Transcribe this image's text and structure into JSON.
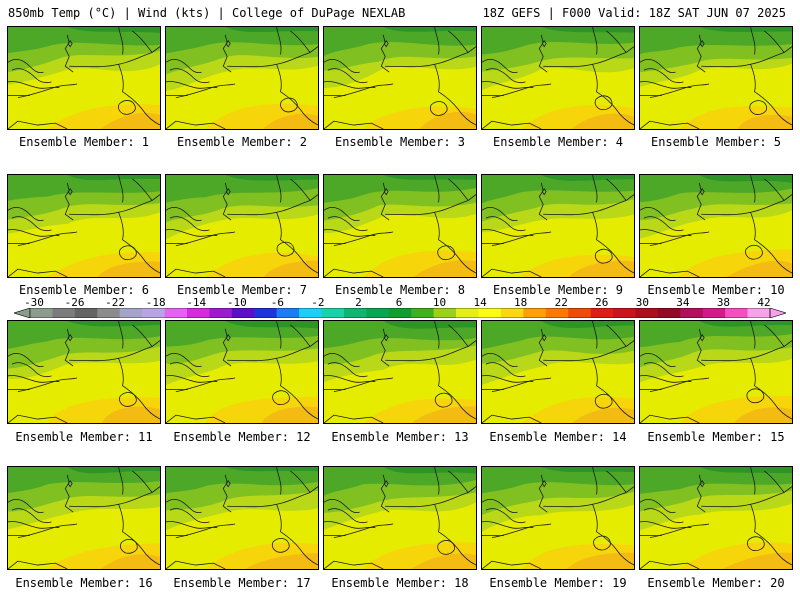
{
  "header": {
    "title": "850mb Temp (°C) | Wind (kts) | College of DuPage NEXLAB",
    "valid": "18Z GEFS | F000 Valid: 18Z SAT JUN 07 2025"
  },
  "members": [
    {
      "label": "Ensemble Member: 1"
    },
    {
      "label": "Ensemble Member: 2"
    },
    {
      "label": "Ensemble Member: 3"
    },
    {
      "label": "Ensemble Member: 4"
    },
    {
      "label": "Ensemble Member: 5"
    },
    {
      "label": "Ensemble Member: 6"
    },
    {
      "label": "Ensemble Member: 7"
    },
    {
      "label": "Ensemble Member: 8"
    },
    {
      "label": "Ensemble Member: 9"
    },
    {
      "label": "Ensemble Member: 10"
    },
    {
      "label": "Ensemble Member: 11"
    },
    {
      "label": "Ensemble Member: 12"
    },
    {
      "label": "Ensemble Member: 13"
    },
    {
      "label": "Ensemble Member: 14"
    },
    {
      "label": "Ensemble Member: 15"
    },
    {
      "label": "Ensemble Member: 16"
    },
    {
      "label": "Ensemble Member: 17"
    },
    {
      "label": "Ensemble Member: 18"
    },
    {
      "label": "Ensemble Member: 19"
    },
    {
      "label": "Ensemble Member: 20"
    }
  ],
  "colorbar": {
    "ticks": [
      "-30",
      "-26",
      "-22",
      "-18",
      "-14",
      "-10",
      "-6",
      "-2",
      "2",
      "6",
      "10",
      "14",
      "18",
      "22",
      "26",
      "30",
      "34",
      "38",
      "42"
    ],
    "colors": [
      "#8c9c8c",
      "#7c7c7c",
      "#646464",
      "#8c8c8c",
      "#a4a4c8",
      "#b8a4e4",
      "#e464f0",
      "#d42cd8",
      "#9c1ccc",
      "#5c10c4",
      "#1c34d8",
      "#1c7cf0",
      "#1cd0f4",
      "#1cd0a8",
      "#14b470",
      "#0ca450",
      "#149c2c",
      "#40b020",
      "#9cd01c",
      "#e4f014",
      "#fcfc10",
      "#fcd80c",
      "#fca008",
      "#f87808",
      "#ec4c0c",
      "#e01c14",
      "#c8141c",
      "#a8101c",
      "#900c24",
      "#b0105c",
      "#d01c88",
      "#f050c0",
      "#f8a0e8"
    ]
  }
}
